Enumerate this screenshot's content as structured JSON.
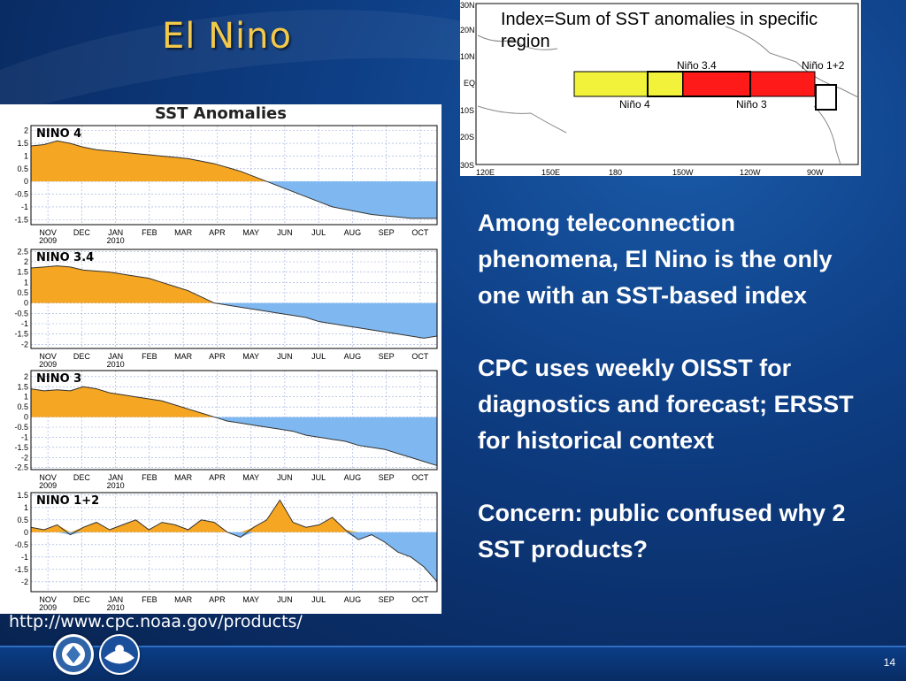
{
  "slide": {
    "title": "El Nino",
    "number": "14",
    "url": "http://www.cpc.noaa.gov/products/"
  },
  "figure": {
    "title": "SST Anomalies",
    "months": [
      "NOV",
      "DEC",
      "JAN",
      "FEB",
      "MAR",
      "APR",
      "MAY",
      "JUN",
      "JUL",
      "AUG",
      "SEP",
      "OCT"
    ],
    "year_start": "2009",
    "year_next": "2010",
    "panels": [
      {
        "label": "NINO 4",
        "ticks": [
          "2",
          "1.5",
          "1",
          "0.5",
          "0",
          "-0.5",
          "-1",
          "-1.5"
        ],
        "ylim": [
          -1.7,
          2.2
        ],
        "values": [
          1.4,
          1.45,
          1.6,
          1.5,
          1.35,
          1.25,
          1.2,
          1.15,
          1.1,
          1.05,
          1.0,
          0.95,
          0.9,
          0.8,
          0.7,
          0.55,
          0.4,
          0.2,
          0.0,
          -0.2,
          -0.4,
          -0.6,
          -0.8,
          -1.0,
          -1.1,
          -1.2,
          -1.3,
          -1.35,
          -1.4,
          -1.45,
          -1.45,
          -1.45
        ]
      },
      {
        "label": "NINO 3.4",
        "ticks": [
          "2.5",
          "2",
          "1.5",
          "1",
          "0.5",
          "0",
          "-0.5",
          "-1",
          "-1.5",
          "-2"
        ],
        "ylim": [
          -2.2,
          2.6
        ],
        "values": [
          1.7,
          1.75,
          1.8,
          1.75,
          1.6,
          1.55,
          1.5,
          1.4,
          1.3,
          1.2,
          1.0,
          0.8,
          0.6,
          0.3,
          0.0,
          -0.1,
          -0.2,
          -0.3,
          -0.4,
          -0.5,
          -0.6,
          -0.7,
          -0.9,
          -1.0,
          -1.1,
          -1.2,
          -1.3,
          -1.4,
          -1.5,
          -1.6,
          -1.7,
          -1.6
        ]
      },
      {
        "label": "NINO 3",
        "ticks": [
          "2",
          "1.5",
          "1",
          "0.5",
          "0",
          "-0.5",
          "-1",
          "-1.5",
          "-2",
          "-2.5"
        ],
        "ylim": [
          -2.6,
          2.3
        ],
        "values": [
          1.4,
          1.3,
          1.35,
          1.3,
          1.5,
          1.4,
          1.2,
          1.1,
          1.0,
          0.9,
          0.8,
          0.6,
          0.4,
          0.2,
          0.0,
          -0.2,
          -0.3,
          -0.4,
          -0.5,
          -0.6,
          -0.7,
          -0.9,
          -1.0,
          -1.1,
          -1.2,
          -1.4,
          -1.5,
          -1.6,
          -1.8,
          -2.0,
          -2.2,
          -2.4
        ]
      },
      {
        "label": "NINO 1+2",
        "ticks": [
          "1.5",
          "1",
          "0.5",
          "0",
          "-0.5",
          "-1",
          "-1.5",
          "-2"
        ],
        "ylim": [
          -2.4,
          1.6
        ],
        "values": [
          0.2,
          0.1,
          0.3,
          -0.1,
          0.2,
          0.4,
          0.1,
          0.3,
          0.5,
          0.1,
          0.4,
          0.3,
          0.1,
          0.5,
          0.4,
          0.0,
          -0.2,
          0.2,
          0.5,
          1.3,
          0.4,
          0.2,
          0.3,
          0.6,
          0.1,
          -0.3,
          -0.1,
          -0.4,
          -0.8,
          -1.0,
          -1.4,
          -2.0
        ]
      }
    ]
  },
  "map": {
    "caption": "Index=Sum of SST anomalies in specific region",
    "lat_labels": [
      "30N",
      "20N",
      "10N",
      "EQ",
      "10S",
      "20S",
      "30S"
    ],
    "lon_labels": [
      "120E",
      "150E",
      "180",
      "150W",
      "120W",
      "90W"
    ],
    "regions": [
      {
        "name": "Niño 4",
        "color": "#f2f23a"
      },
      {
        "name": "Niño 3.4",
        "color": "#f2f23a"
      },
      {
        "name": "Niño 3",
        "color": "#ff1a1a"
      },
      {
        "name": "Niño 1+2",
        "color": "#ffffff"
      }
    ]
  },
  "body": {
    "p1": "Among teleconnection phenomena, El Nino is the only one with an SST-based index",
    "p2": "CPC uses weekly OISST for diagnostics and forecast; ERSST for historical context",
    "p3": "Concern: public confused why 2 SST products?"
  },
  "colors": {
    "positive": "#f5a623",
    "negative": "#7fb8f0",
    "title": "#f3c94a"
  },
  "logos": [
    "commerce-seal-icon",
    "noaa-logo-icon"
  ]
}
